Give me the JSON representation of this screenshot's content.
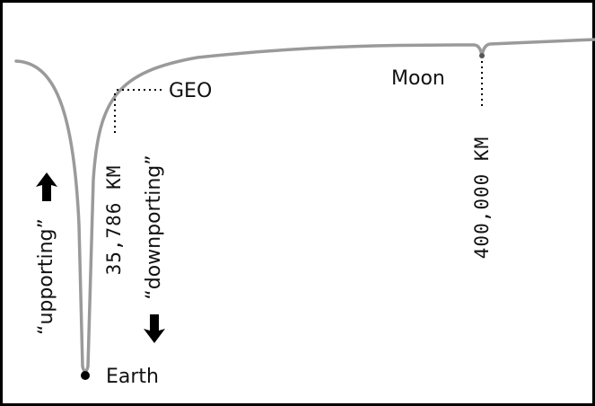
{
  "labels": {
    "geo": "GEO",
    "moon": "Moon",
    "earth": "Earth",
    "geo_distance": "35,786 KM",
    "moon_distance": "400,000 KM",
    "upporting": "“upporting”",
    "downporting": "“downporting”"
  }
}
